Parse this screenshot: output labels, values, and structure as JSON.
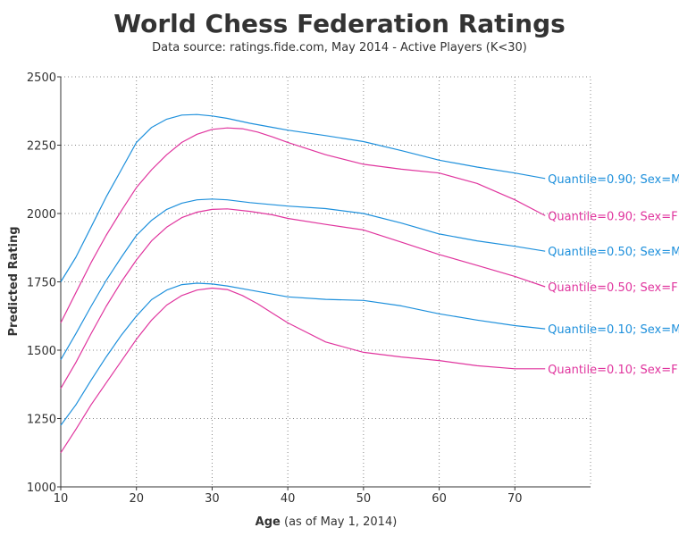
{
  "chart_data": {
    "type": "line",
    "title": "World Chess Federation Ratings",
    "subtitle": "Data source: ratings.fide.com, May 2014 - Active Players (K<30)",
    "xlabel_bold": "Age",
    "xlabel_rest": " (as of May 1, 2014)",
    "ylabel": "Predicted Rating",
    "xlim": [
      10,
      80
    ],
    "ylim": [
      1000,
      2500
    ],
    "x_ticks": [
      10,
      20,
      30,
      40,
      50,
      60,
      70
    ],
    "y_ticks": [
      1000,
      1250,
      1500,
      1750,
      2000,
      2250,
      2500
    ],
    "grid": true,
    "legend": "inline-right",
    "colors": {
      "M": "#1e90dc",
      "F": "#e0359e"
    },
    "series": [
      {
        "name": "Quantile=0.90; Sex=M",
        "sex": "M",
        "points": [
          [
            10,
            1750
          ],
          [
            12,
            1840
          ],
          [
            14,
            1950
          ],
          [
            16,
            2060
          ],
          [
            18,
            2160
          ],
          [
            20,
            2260
          ],
          [
            22,
            2315
          ],
          [
            24,
            2345
          ],
          [
            26,
            2360
          ],
          [
            28,
            2362
          ],
          [
            30,
            2357
          ],
          [
            32,
            2348
          ],
          [
            35,
            2330
          ],
          [
            38,
            2315
          ],
          [
            40,
            2305
          ],
          [
            45,
            2285
          ],
          [
            50,
            2263
          ],
          [
            55,
            2230
          ],
          [
            60,
            2195
          ],
          [
            65,
            2170
          ],
          [
            70,
            2148
          ],
          [
            74,
            2128
          ]
        ]
      },
      {
        "name": "Quantile=0.90; Sex=F",
        "sex": "F",
        "points": [
          [
            10,
            1600
          ],
          [
            12,
            1710
          ],
          [
            14,
            1820
          ],
          [
            16,
            1920
          ],
          [
            18,
            2010
          ],
          [
            20,
            2095
          ],
          [
            22,
            2160
          ],
          [
            24,
            2215
          ],
          [
            26,
            2260
          ],
          [
            28,
            2290
          ],
          [
            30,
            2308
          ],
          [
            32,
            2313
          ],
          [
            34,
            2310
          ],
          [
            36,
            2298
          ],
          [
            38,
            2280
          ],
          [
            40,
            2260
          ],
          [
            45,
            2215
          ],
          [
            50,
            2180
          ],
          [
            55,
            2162
          ],
          [
            60,
            2148
          ],
          [
            65,
            2110
          ],
          [
            70,
            2050
          ],
          [
            74,
            1992
          ]
        ]
      },
      {
        "name": "Quantile=0.50; Sex=M",
        "sex": "M",
        "points": [
          [
            10,
            1465
          ],
          [
            12,
            1560
          ],
          [
            14,
            1660
          ],
          [
            16,
            1755
          ],
          [
            18,
            1840
          ],
          [
            20,
            1920
          ],
          [
            22,
            1975
          ],
          [
            24,
            2015
          ],
          [
            26,
            2038
          ],
          [
            28,
            2050
          ],
          [
            30,
            2053
          ],
          [
            32,
            2050
          ],
          [
            35,
            2040
          ],
          [
            40,
            2027
          ],
          [
            45,
            2018
          ],
          [
            50,
            2000
          ],
          [
            55,
            1965
          ],
          [
            60,
            1925
          ],
          [
            65,
            1900
          ],
          [
            70,
            1880
          ],
          [
            74,
            1862
          ]
        ]
      },
      {
        "name": "Quantile=0.50; Sex=F",
        "sex": "F",
        "points": [
          [
            10,
            1360
          ],
          [
            12,
            1455
          ],
          [
            14,
            1560
          ],
          [
            16,
            1660
          ],
          [
            18,
            1750
          ],
          [
            20,
            1830
          ],
          [
            22,
            1900
          ],
          [
            24,
            1950
          ],
          [
            26,
            1985
          ],
          [
            28,
            2005
          ],
          [
            30,
            2015
          ],
          [
            32,
            2017
          ],
          [
            35,
            2008
          ],
          [
            38,
            1995
          ],
          [
            40,
            1982
          ],
          [
            45,
            1960
          ],
          [
            50,
            1940
          ],
          [
            55,
            1895
          ],
          [
            60,
            1850
          ],
          [
            65,
            1810
          ],
          [
            70,
            1770
          ],
          [
            74,
            1732
          ]
        ]
      },
      {
        "name": "Quantile=0.10; Sex=M",
        "sex": "M",
        "points": [
          [
            10,
            1225
          ],
          [
            12,
            1300
          ],
          [
            14,
            1390
          ],
          [
            16,
            1475
          ],
          [
            18,
            1555
          ],
          [
            20,
            1625
          ],
          [
            22,
            1685
          ],
          [
            24,
            1720
          ],
          [
            26,
            1740
          ],
          [
            28,
            1745
          ],
          [
            30,
            1742
          ],
          [
            32,
            1735
          ],
          [
            35,
            1720
          ],
          [
            40,
            1695
          ],
          [
            45,
            1686
          ],
          [
            50,
            1682
          ],
          [
            55,
            1662
          ],
          [
            60,
            1633
          ],
          [
            65,
            1610
          ],
          [
            70,
            1590
          ],
          [
            74,
            1578
          ]
        ]
      },
      {
        "name": "Quantile=0.10; Sex=F",
        "sex": "F",
        "points": [
          [
            10,
            1125
          ],
          [
            12,
            1210
          ],
          [
            14,
            1300
          ],
          [
            16,
            1380
          ],
          [
            18,
            1460
          ],
          [
            20,
            1540
          ],
          [
            22,
            1610
          ],
          [
            24,
            1665
          ],
          [
            26,
            1700
          ],
          [
            28,
            1720
          ],
          [
            30,
            1727
          ],
          [
            32,
            1722
          ],
          [
            34,
            1700
          ],
          [
            36,
            1670
          ],
          [
            38,
            1635
          ],
          [
            40,
            1600
          ],
          [
            45,
            1530
          ],
          [
            50,
            1492
          ],
          [
            55,
            1475
          ],
          [
            60,
            1462
          ],
          [
            65,
            1443
          ],
          [
            70,
            1432
          ],
          [
            74,
            1432
          ]
        ]
      }
    ]
  }
}
